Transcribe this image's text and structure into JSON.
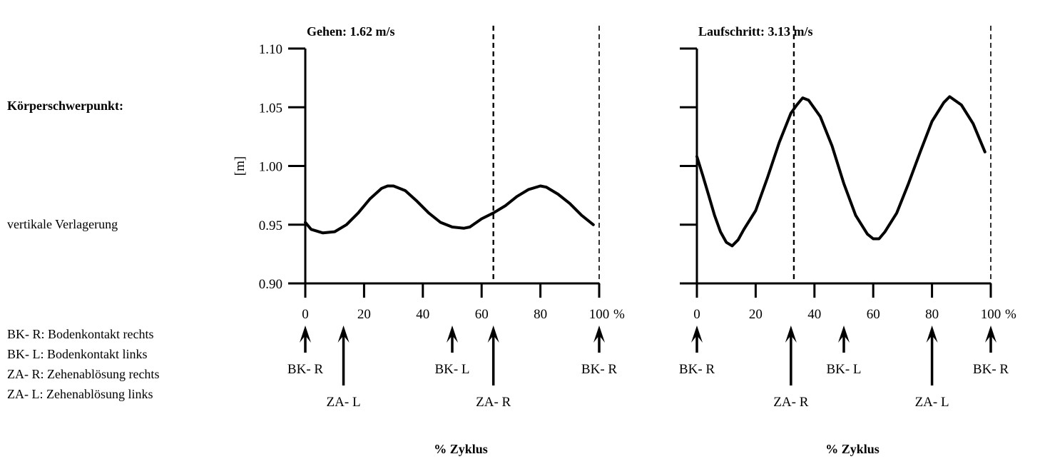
{
  "side_labels": {
    "title": "Körperschwerpunkt:",
    "subtitle": "vertikale Verlagerung",
    "legend": [
      "BK- R: Bodenkontakt rechts",
      "BK- L: Bodenkontakt links",
      "ZA- R: Zehenablösung rechts",
      "ZA- L: Zehenablösung links"
    ]
  },
  "chart_data": [
    {
      "type": "line",
      "title": "Gehen: 1.62 m/s",
      "ylabel": "[m]",
      "xlabel": "% Zyklus",
      "xlim": [
        0,
        100
      ],
      "ylim": [
        0.9,
        1.1
      ],
      "x_unit": "%",
      "xticks": [
        0,
        20,
        40,
        60,
        80,
        100
      ],
      "yticks": [
        0.9,
        0.95,
        1.0,
        1.05,
        1.1
      ],
      "ytick_labels": [
        "0.90",
        "0.95",
        "1.00",
        "1.05",
        "1.10"
      ],
      "series": [
        {
          "x": [
            0,
            2,
            6,
            10,
            14,
            18,
            22,
            26,
            28,
            30,
            34,
            38,
            42,
            46,
            50,
            54,
            56,
            60,
            64,
            68,
            72,
            76,
            80,
            82,
            86,
            90,
            94,
            98
          ],
          "y": [
            0.952,
            0.946,
            0.943,
            0.944,
            0.95,
            0.96,
            0.972,
            0.981,
            0.983,
            0.983,
            0.979,
            0.97,
            0.96,
            0.952,
            0.948,
            0.947,
            0.948,
            0.955,
            0.96,
            0.966,
            0.974,
            0.98,
            0.983,
            0.982,
            0.976,
            0.968,
            0.958,
            0.95
          ]
        }
      ],
      "dashed_lines_x": [
        64,
        100
      ],
      "events": [
        {
          "x": 0,
          "label": "BK- R",
          "row": "top"
        },
        {
          "x": 13,
          "label": "ZA- L",
          "row": "bottom"
        },
        {
          "x": 50,
          "label": "BK- L",
          "row": "top"
        },
        {
          "x": 64,
          "label": "ZA- R",
          "row": "bottom"
        },
        {
          "x": 100,
          "label": "BK- R",
          "row": "top"
        }
      ]
    },
    {
      "type": "line",
      "title": "Laufschritt: 3.13 m/s",
      "xlabel": "% Zyklus",
      "xlim": [
        0,
        100
      ],
      "ylim": [
        0.9,
        1.1
      ],
      "x_unit": "%",
      "xticks": [
        0,
        20,
        40,
        60,
        80,
        100
      ],
      "yticks": [
        0.9,
        0.95,
        1.0,
        1.05,
        1.1
      ],
      "series": [
        {
          "x": [
            0,
            2,
            4,
            6,
            8,
            10,
            12,
            14,
            16,
            20,
            24,
            28,
            32,
            34,
            36,
            38,
            42,
            46,
            50,
            54,
            58,
            60,
            62,
            64,
            68,
            72,
            76,
            80,
            84,
            86,
            90,
            94,
            98
          ],
          "y": [
            1.008,
            0.992,
            0.975,
            0.958,
            0.944,
            0.935,
            0.932,
            0.937,
            0.946,
            0.962,
            0.99,
            1.02,
            1.045,
            1.052,
            1.058,
            1.056,
            1.042,
            1.017,
            0.985,
            0.958,
            0.942,
            0.938,
            0.938,
            0.944,
            0.96,
            0.985,
            1.012,
            1.038,
            1.054,
            1.059,
            1.052,
            1.036,
            1.012
          ]
        }
      ],
      "dashed_lines_x": [
        33,
        100
      ],
      "events": [
        {
          "x": 0,
          "label": "BK- R",
          "row": "top"
        },
        {
          "x": 32,
          "label": "ZA- R",
          "row": "bottom"
        },
        {
          "x": 50,
          "label": "BK- L",
          "row": "top"
        },
        {
          "x": 80,
          "label": "ZA- L",
          "row": "bottom"
        },
        {
          "x": 100,
          "label": "BK- R",
          "row": "top"
        }
      ]
    }
  ]
}
